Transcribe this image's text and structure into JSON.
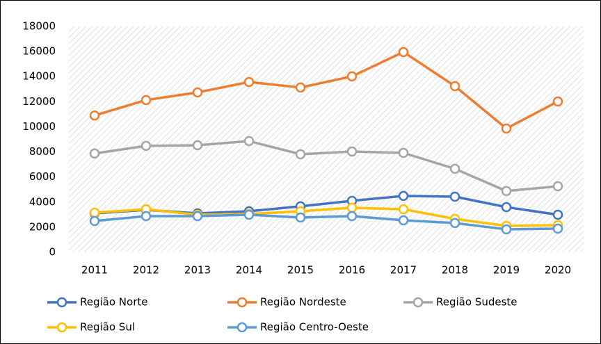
{
  "chart_data": {
    "type": "line",
    "categories": [
      "2011",
      "2012",
      "2013",
      "2014",
      "2015",
      "2016",
      "2017",
      "2018",
      "2019",
      "2020"
    ],
    "series": [
      {
        "name": "Região Norte",
        "color": "#4472c4",
        "values": [
          3100,
          3380,
          3100,
          3270,
          3660,
          4100,
          4490,
          4430,
          3600,
          2990
        ]
      },
      {
        "name": "Região Nordeste",
        "color": "#ed7d31",
        "values": [
          10900,
          12130,
          12740,
          13570,
          13130,
          14020,
          15960,
          13240,
          9860,
          12020
        ]
      },
      {
        "name": "Região Sudeste",
        "color": "#a5a5a5",
        "values": [
          7870,
          8480,
          8530,
          8860,
          7810,
          8030,
          7920,
          6650,
          4880,
          5260
        ]
      },
      {
        "name": "Região Sul",
        "color": "#ffc000",
        "values": [
          3160,
          3430,
          2990,
          3050,
          3270,
          3550,
          3430,
          2660,
          2100,
          2160
        ]
      },
      {
        "name": "Região Centro-Oeste",
        "color": "#5b9bd5",
        "values": [
          2490,
          2880,
          2880,
          2990,
          2770,
          2880,
          2550,
          2330,
          1830,
          1880
        ]
      }
    ],
    "ylim": [
      0,
      18000
    ],
    "yticks": [
      0,
      2000,
      4000,
      6000,
      8000,
      10000,
      12000,
      14000,
      16000,
      18000
    ],
    "grid": false,
    "legend": "bottom"
  }
}
